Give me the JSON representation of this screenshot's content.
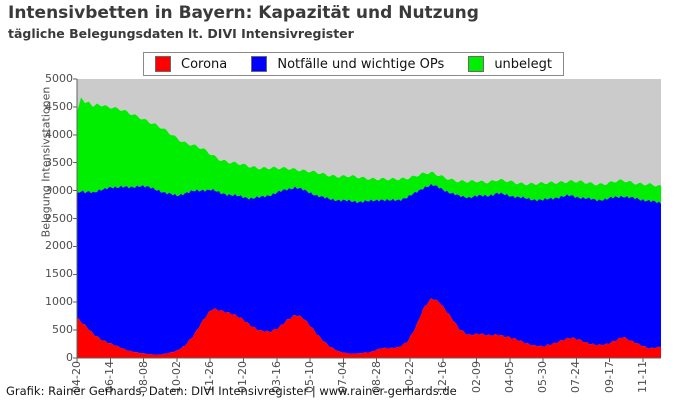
{
  "header": {
    "title": "Intensivbetten in Bayern: Kapazität und Nutzung",
    "subtitle": "tägliche Belegungsdaten lt. DIVI Intensivregister"
  },
  "legend": {
    "items": [
      {
        "label": "Corona",
        "color": "#ff0000"
      },
      {
        "label": "Notfälle und wichtige OPs",
        "color": "#0000ff"
      },
      {
        "label": "unbelegt",
        "color": "#00ee00"
      }
    ]
  },
  "footer": {
    "credit": "Grafik: Rainer Gerhards, Daten: DIVI Intensivregister | www.rainer-gerhards.de"
  },
  "chart_data": {
    "type": "area",
    "stacked": true,
    "title": "Intensivbetten in Bayern: Kapazität und Nutzung",
    "subtitle": "tägliche Belegungsdaten lt. DIVI Intensivregister",
    "xlabel": "",
    "ylabel": "Belegung Intensivstationen",
    "ylim": [
      0,
      5000
    ],
    "yticks": [
      0,
      500,
      1000,
      1500,
      2000,
      2500,
      3000,
      3500,
      4000,
      4500,
      5000
    ],
    "xticklabels": [
      "04-20",
      "06-14",
      "08-08",
      "10-02",
      "11-26",
      "01-20",
      "03-16",
      "05-10",
      "07-04",
      "08-28",
      "10-22",
      "12-16",
      "02-09",
      "04-05",
      "05-30",
      "07-24",
      "09-17",
      "11-11"
    ],
    "plot_bg": "#cbcbcb",
    "legend_position": "top",
    "grid": false,
    "x": [
      "2020-04-18",
      "2020-04-25",
      "2020-05-02",
      "2020-05-09",
      "2020-05-16",
      "2020-05-23",
      "2020-06-01",
      "2020-06-14",
      "2020-07-01",
      "2020-07-15",
      "2020-08-01",
      "2020-08-15",
      "2020-09-01",
      "2020-09-15",
      "2020-10-02",
      "2020-10-15",
      "2020-11-01",
      "2020-11-15",
      "2020-12-01",
      "2020-12-15",
      "2021-01-01",
      "2021-01-20",
      "2021-02-05",
      "2021-02-20",
      "2021-03-08",
      "2021-03-22",
      "2021-04-05",
      "2021-04-20",
      "2021-05-03",
      "2021-05-17",
      "2021-06-01",
      "2021-06-15",
      "2021-07-01",
      "2021-07-20",
      "2021-08-05",
      "2021-08-25",
      "2021-09-10",
      "2021-09-25",
      "2021-10-10",
      "2021-10-25",
      "2021-11-08",
      "2021-11-22",
      "2021-12-05",
      "2021-12-18",
      "2022-01-05",
      "2022-01-20",
      "2022-02-05",
      "2022-02-20",
      "2022-03-10",
      "2022-03-25",
      "2022-04-10",
      "2022-04-25",
      "2022-05-10",
      "2022-05-25",
      "2022-06-10",
      "2022-06-25",
      "2022-07-10",
      "2022-07-25",
      "2022-08-10",
      "2022-08-25",
      "2022-09-10",
      "2022-09-25",
      "2022-10-10",
      "2022-10-22",
      "2022-11-05",
      "2022-11-20",
      "2022-12-05",
      "2022-12-25"
    ],
    "series": [
      {
        "name": "Corona",
        "color": "#ff0000",
        "values": [
          720,
          640,
          570,
          500,
          430,
          380,
          320,
          250,
          180,
          130,
          90,
          70,
          60,
          80,
          120,
          210,
          430,
          660,
          880,
          860,
          800,
          700,
          580,
          490,
          460,
          540,
          680,
          770,
          710,
          560,
          360,
          210,
          120,
          80,
          80,
          110,
          180,
          170,
          190,
          300,
          550,
          900,
          1080,
          1010,
          740,
          520,
          420,
          430,
          400,
          430,
          380,
          330,
          280,
          230,
          200,
          250,
          320,
          360,
          320,
          270,
          230,
          240,
          320,
          390,
          300,
          230,
          180,
          200
        ]
      },
      {
        "name": "Notfälle und wichtige OPs",
        "color": "#0000ff",
        "values": [
          2230,
          2340,
          2390,
          2490,
          2540,
          2620,
          2690,
          2810,
          2890,
          2920,
          3000,
          2990,
          2950,
          2870,
          2790,
          2740,
          2560,
          2350,
          2130,
          2100,
          2120,
          2190,
          2280,
          2390,
          2460,
          2430,
          2340,
          2290,
          2300,
          2390,
          2530,
          2640,
          2710,
          2730,
          2720,
          2700,
          2660,
          2650,
          2640,
          2580,
          2410,
          2160,
          2020,
          2040,
          2220,
          2380,
          2460,
          2470,
          2510,
          2520,
          2540,
          2560,
          2580,
          2610,
          2630,
          2610,
          2570,
          2550,
          2560,
          2580,
          2600,
          2610,
          2560,
          2510,
          2570,
          2610,
          2640,
          2570
        ]
      },
      {
        "name": "unbelegt",
        "color": "#00ee00",
        "values": [
          1430,
          1720,
          1560,
          1610,
          1510,
          1560,
          1520,
          1440,
          1370,
          1330,
          1230,
          1190,
          1140,
          1110,
          1040,
          920,
          810,
          730,
          630,
          600,
          580,
          570,
          570,
          530,
          480,
          420,
          380,
          330,
          350,
          380,
          410,
          430,
          430,
          440,
          430,
          410,
          370,
          370,
          370,
          350,
          310,
          240,
          210,
          220,
          250,
          260,
          270,
          270,
          250,
          240,
          240,
          250,
          270,
          280,
          290,
          280,
          270,
          260,
          270,
          280,
          290,
          280,
          280,
          270,
          280,
          290,
          290,
          290
        ]
      }
    ]
  }
}
